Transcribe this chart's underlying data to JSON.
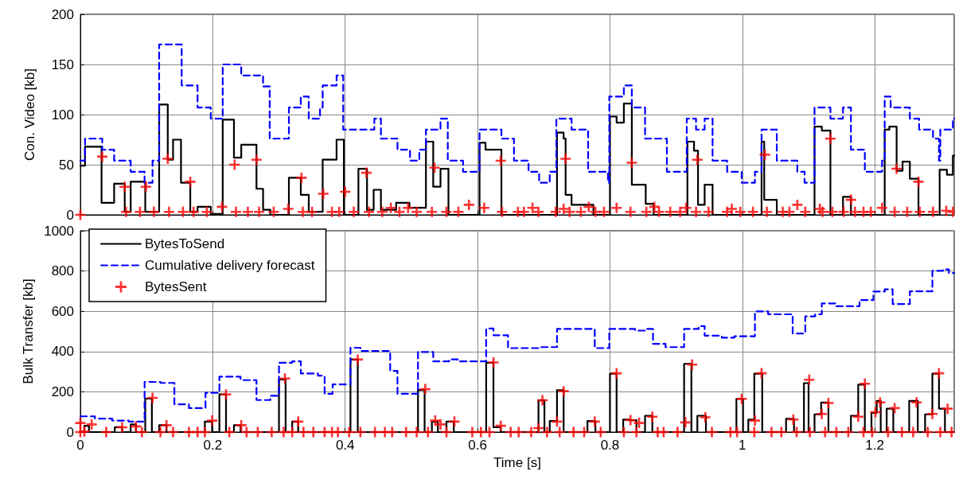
{
  "chart_data": [
    {
      "type": "step",
      "ylabel": "Con. Video [kb]",
      "xlim": [
        0,
        1.32
      ],
      "xticks": [
        0,
        0.2,
        0.4,
        0.6,
        0.8,
        1,
        1.2
      ],
      "ylim": [
        0,
        200
      ],
      "yticks": [
        0,
        50,
        100,
        150,
        200
      ],
      "grid": true,
      "legend": false,
      "tick_labels": "y",
      "series": [
        {
          "color": "#000000",
          "line_style": "solid",
          "marker": "none",
          "x": [
            0,
            0.007,
            0.032,
            0.051,
            0.067,
            0.076,
            0.098,
            0.119,
            0.132,
            0.14,
            0.152,
            0.166,
            0.177,
            0.197,
            0.215,
            0.232,
            0.243,
            0.266,
            0.276,
            0.287,
            0.315,
            0.333,
            0.345,
            0.366,
            0.387,
            0.398,
            0.42,
            0.433,
            0.443,
            0.454,
            0.477,
            0.497,
            0.522,
            0.533,
            0.544,
            0.556,
            0.603,
            0.612,
            0.636,
            0.72,
            0.73,
            0.733,
            0.742,
            0.775,
            0.8,
            0.81,
            0.821,
            0.833,
            0.854,
            0.866,
            0.917,
            0.927,
            0.933,
            0.943,
            0.955,
            1.029,
            1.033,
            1.052,
            1.109,
            1.12,
            1.133,
            1.152,
            1.164,
            1.215,
            1.222,
            1.233,
            1.242,
            1.253,
            1.266,
            1.298,
            1.309,
            1.318,
            1.32
          ],
          "values": [
            49,
            68,
            12,
            31,
            3,
            33,
            3,
            110,
            55,
            75,
            32,
            3,
            8,
            1,
            95,
            57,
            70,
            26,
            5,
            0,
            37,
            20,
            3,
            55,
            75,
            0,
            46,
            5,
            25,
            5,
            12,
            7,
            73,
            28,
            46,
            0,
            72,
            65,
            0,
            82,
            76,
            20,
            10,
            0,
            98,
            92,
            111,
            30,
            11,
            0,
            73,
            64,
            10,
            30,
            0,
            73,
            15,
            0,
            88,
            84,
            0,
            18,
            0,
            85,
            88,
            44,
            53,
            36,
            0,
            45,
            40,
            59,
            59
          ]
        },
        {
          "color": "#0000ff",
          "line_style": "dashed",
          "marker": "none",
          "x": [
            0,
            0.007,
            0.033,
            0.051,
            0.076,
            0.097,
            0.109,
            0.119,
            0.153,
            0.177,
            0.197,
            0.215,
            0.243,
            0.276,
            0.286,
            0.315,
            0.333,
            0.345,
            0.362,
            0.366,
            0.387,
            0.397,
            0.444,
            0.454,
            0.479,
            0.498,
            0.512,
            0.522,
            0.544,
            0.555,
            0.578,
            0.603,
            0.636,
            0.655,
            0.677,
            0.693,
            0.709,
            0.719,
            0.742,
            0.767,
            0.797,
            0.799,
            0.821,
            0.833,
            0.853,
            0.886,
            0.916,
            0.93,
            0.943,
            0.955,
            0.977,
            0.999,
            1.019,
            1.029,
            1.052,
            1.083,
            1.094,
            1.109,
            1.133,
            1.152,
            1.164,
            1.185,
            1.211,
            1.215,
            1.224,
            1.253,
            1.267,
            1.288,
            1.297,
            1.299,
            1.318,
            1.32
          ],
          "values": [
            54,
            76,
            65,
            54,
            43,
            32,
            54,
            170,
            129,
            107,
            96,
            150,
            139,
            128,
            76,
            107,
            118,
            96,
            107,
            129,
            139,
            85,
            96,
            76,
            65,
            54,
            65,
            85,
            96,
            54,
            43,
            85,
            76,
            54,
            43,
            32,
            43,
            96,
            85,
            43,
            32,
            118,
            129,
            107,
            76,
            43,
            96,
            85,
            96,
            54,
            43,
            32,
            43,
            85,
            54,
            43,
            32,
            107,
            96,
            107,
            65,
            43,
            54,
            118,
            107,
            96,
            85,
            76,
            54,
            85,
            96,
            96
          ]
        },
        {
          "type": "scatter",
          "color": "#ff0000",
          "marker": "cross",
          "x": [
            0,
            0.033,
            0.067,
            0.069,
            0.09,
            0.099,
            0.111,
            0.132,
            0.134,
            0.155,
            0.166,
            0.171,
            0.191,
            0.214,
            0.233,
            0.235,
            0.253,
            0.266,
            0.27,
            0.292,
            0.314,
            0.334,
            0.336,
            0.35,
            0.367,
            0.38,
            0.391,
            0.4,
            0.413,
            0.432,
            0.436,
            0.456,
            0.469,
            0.482,
            0.495,
            0.508,
            0.531,
            0.535,
            0.553,
            0.571,
            0.587,
            0.61,
            0.635,
            0.637,
            0.661,
            0.67,
            0.683,
            0.692,
            0.718,
            0.73,
            0.733,
            0.739,
            0.756,
            0.768,
            0.778,
            0.791,
            0.81,
            0.831,
            0.833,
            0.855,
            0.867,
            0.874,
            0.891,
            0.906,
            0.915,
            0.93,
            0.932,
            0.949,
            0.977,
            0.984,
            0.997,
            1.016,
            1.034,
            1.037,
            1.061,
            1.071,
            1.083,
            1.095,
            1.117,
            1.121,
            1.133,
            1.136,
            1.153,
            1.164,
            1.17,
            1.183,
            1.194,
            1.211,
            1.23,
            1.233,
            1.249,
            1.266,
            1.268,
            1.288,
            1.308,
            1.318
          ],
          "values": [
            0,
            58,
            28,
            3,
            3,
            28,
            3,
            56,
            3,
            3,
            33,
            3,
            3,
            8,
            50,
            3,
            3,
            55,
            3,
            3,
            6,
            37,
            3,
            3,
            21,
            3,
            3,
            23,
            3,
            42,
            3,
            3,
            7,
            3,
            7,
            3,
            3,
            47,
            3,
            3,
            10,
            7,
            54,
            3,
            3,
            3,
            7,
            3,
            3,
            6,
            56,
            3,
            3,
            8,
            3,
            3,
            7,
            3,
            52,
            3,
            8,
            3,
            3,
            3,
            7,
            3,
            55,
            3,
            3,
            6,
            3,
            3,
            60,
            3,
            3,
            3,
            10,
            3,
            6,
            3,
            76,
            3,
            3,
            15,
            3,
            3,
            3,
            7,
            3,
            46,
            3,
            33,
            3,
            3,
            4,
            3
          ]
        }
      ]
    },
    {
      "type": "step",
      "xlabel": "Time [s]",
      "ylabel": "Bulk Transfer [kb]",
      "xlim": [
        0,
        1.32
      ],
      "xticks": [
        0,
        0.2,
        0.4,
        0.6,
        0.8,
        1,
        1.2
      ],
      "ylim": [
        0,
        1000
      ],
      "yticks": [
        0,
        200,
        400,
        600,
        800,
        1000
      ],
      "grid": true,
      "legend": "top left",
      "series": [
        {
          "name": "BytesToSend",
          "color": "#000000",
          "line_style": "solid",
          "marker": "none",
          "x": [
            0,
            0.006,
            0.013,
            0.052,
            0.063,
            0.076,
            0.084,
            0.098,
            0.108,
            0.119,
            0.13,
            0.188,
            0.199,
            0.21,
            0.22,
            0.232,
            0.242,
            0.3,
            0.31,
            0.32,
            0.329,
            0.408,
            0.419,
            0.51,
            0.52,
            0.531,
            0.54,
            0.553,
            0.564,
            0.613,
            0.624,
            0.635,
            0.692,
            0.701,
            0.709,
            0.72,
            0.73,
            0.766,
            0.778,
            0.8,
            0.81,
            0.82,
            0.829,
            0.84,
            0.853,
            0.864,
            0.912,
            0.923,
            0.932,
            0.945,
            0.991,
            1.001,
            1.009,
            1.018,
            1.03,
            1.066,
            1.078,
            1.093,
            1.1,
            1.109,
            1.119,
            1.13,
            1.164,
            1.175,
            1.185,
            1.195,
            1.203,
            1.209,
            1.218,
            1.228,
            1.252,
            1.265,
            1.276,
            1.287,
            1.297,
            1.306,
            1.32
          ],
          "values": [
            0,
            31,
            0,
            24,
            0,
            38,
            0,
            166,
            0,
            34,
            0,
            52,
            0,
            187,
            0,
            34,
            0,
            261,
            0,
            52,
            0,
            360,
            0,
            209,
            0,
            52,
            0,
            52,
            0,
            344,
            24,
            0,
            158,
            0,
            55,
            208,
            0,
            55,
            0,
            290,
            0,
            62,
            59,
            0,
            81,
            0,
            339,
            0,
            81,
            0,
            165,
            0,
            62,
            290,
            0,
            66,
            0,
            243,
            0,
            88,
            147,
            0,
            81,
            236,
            0,
            95,
            155,
            0,
            116,
            0,
            155,
            0,
            88,
            290,
            116,
            0,
            0
          ]
        },
        {
          "name": "Cumulative delivery forecast",
          "color": "#0000ff",
          "line_style": "dashed",
          "marker": "none",
          "x": [
            0,
            0.022,
            0.048,
            0.073,
            0.097,
            0.121,
            0.142,
            0.164,
            0.189,
            0.21,
            0.242,
            0.266,
            0.287,
            0.3,
            0.32,
            0.333,
            0.359,
            0.369,
            0.381,
            0.408,
            0.423,
            0.468,
            0.479,
            0.51,
            0.533,
            0.557,
            0.57,
            0.613,
            0.624,
            0.646,
            0.692,
            0.72,
            0.777,
            0.799,
            0.838,
            0.855,
            0.865,
            0.884,
            0.912,
            0.934,
            0.943,
            0.969,
            0.988,
            1.019,
            1.039,
            1.076,
            1.095,
            1.11,
            1.12,
            1.142,
            1.177,
            1.198,
            1.215,
            1.227,
            1.253,
            1.287,
            1.303,
            1.312,
            1.32
          ],
          "values": [
            78,
            67,
            57,
            52,
            249,
            244,
            138,
            119,
            195,
            275,
            258,
            159,
            180,
            344,
            351,
            291,
            280,
            190,
            237,
            419,
            403,
            304,
            190,
            398,
            351,
            361,
            351,
            514,
            481,
            417,
            422,
            512,
            417,
            512,
            504,
            512,
            438,
            422,
            512,
            526,
            479,
            469,
            476,
            599,
            585,
            490,
            575,
            585,
            639,
            625,
            656,
            698,
            709,
            636,
            699,
            801,
            808,
            790,
            790
          ]
        },
        {
          "name": "BytesSent",
          "type": "scatter",
          "color": "#ff0000",
          "marker": "cross",
          "x": [
            0,
            0,
            0.006,
            0.017,
            0.039,
            0.063,
            0.084,
            0.093,
            0.109,
            0.121,
            0.13,
            0.14,
            0.164,
            0.177,
            0.188,
            0.199,
            0.22,
            0.225,
            0.243,
            0.251,
            0.268,
            0.289,
            0.307,
            0.309,
            0.32,
            0.329,
            0.337,
            0.352,
            0.369,
            0.38,
            0.389,
            0.406,
            0.419,
            0.423,
            0.445,
            0.46,
            0.471,
            0.492,
            0.508,
            0.521,
            0.525,
            0.536,
            0.544,
            0.553,
            0.565,
            0.592,
            0.605,
            0.618,
            0.624,
            0.635,
            0.65,
            0.662,
            0.681,
            0.692,
            0.698,
            0.705,
            0.72,
            0.724,
            0.73,
            0.745,
            0.761,
            0.777,
            0.786,
            0.81,
            0.821,
            0.831,
            0.84,
            0.844,
            0.864,
            0.872,
            0.881,
            0.902,
            0.914,
            0.924,
            0.944,
            0.954,
            0.982,
            0.992,
            0.999,
            1.018,
            1.019,
            1.029,
            1.044,
            1.059,
            1.077,
            1.082,
            1.101,
            1.102,
            1.12,
            1.125,
            1.13,
            1.142,
            1.16,
            1.175,
            1.183,
            1.185,
            1.196,
            1.201,
            1.208,
            1.22,
            1.23,
            1.241,
            1.258,
            1.263,
            1.28,
            1.287,
            1.297,
            1.299,
            1.31,
            1.316
          ],
          "values": [
            45,
            0,
            3,
            38,
            0,
            24,
            28,
            0,
            170,
            0,
            34,
            0,
            0,
            0,
            0,
            57,
            187,
            0,
            34,
            0,
            0,
            0,
            0,
            266,
            0,
            52,
            0,
            0,
            0,
            0,
            0,
            0,
            360,
            0,
            0,
            0,
            0,
            0,
            0,
            213,
            0,
            57,
            38,
            0,
            52,
            0,
            0,
            0,
            346,
            31,
            0,
            0,
            0,
            20,
            158,
            0,
            52,
            0,
            203,
            0,
            0,
            52,
            0,
            292,
            0,
            59,
            0,
            45,
            76,
            0,
            0,
            0,
            48,
            335,
            73,
            0,
            0,
            0,
            165,
            0,
            57,
            292,
            0,
            0,
            62,
            0,
            260,
            0,
            90,
            0,
            144,
            0,
            0,
            76,
            0,
            240,
            0,
            99,
            147,
            0,
            119,
            0,
            0,
            147,
            0,
            90,
            292,
            0,
            116,
            0
          ]
        }
      ]
    }
  ]
}
